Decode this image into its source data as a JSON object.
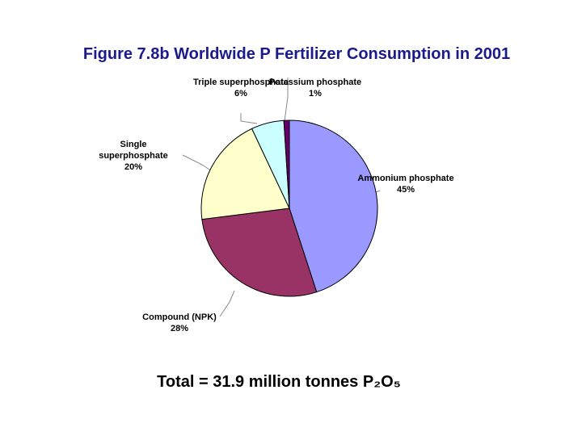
{
  "chart_data": {
    "type": "pie",
    "title": "Figure 7.8b Worldwide P Fertilizer Consumption in 2001",
    "footnote": "Total = 31.9 million tonnes P₂O₅",
    "categories": [
      "Ammonium phosphate",
      "Compound (NPK)",
      "Single superphosphate",
      "Triple superphosphate",
      "Potassium phosphate"
    ],
    "values": [
      45,
      28,
      20,
      6,
      1
    ],
    "value_labels": [
      "45%",
      "28%",
      "20%",
      "6%",
      "1%"
    ],
    "colors": [
      "#9999ff",
      "#993366",
      "#ffffcc",
      "#ccffff",
      "#660066"
    ]
  }
}
